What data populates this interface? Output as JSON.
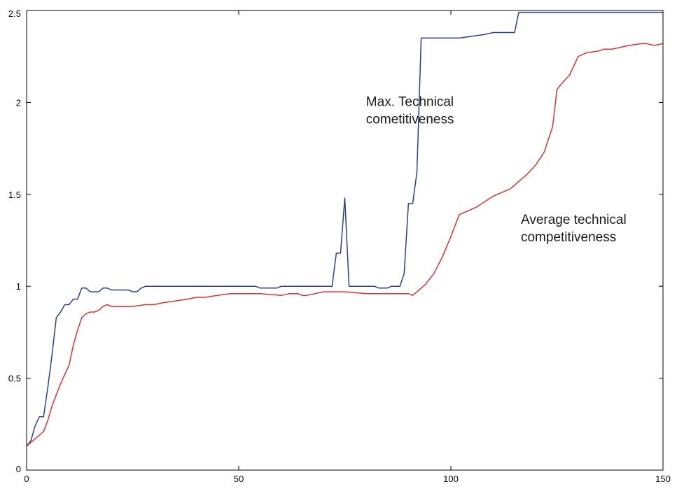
{
  "chart_data": {
    "type": "line",
    "title": "",
    "xlabel": "",
    "ylabel": "",
    "xlim": [
      0,
      150
    ],
    "ylim": [
      0,
      2.5
    ],
    "x_ticks": [
      0,
      50,
      100,
      150
    ],
    "y_ticks": [
      0,
      0.5,
      1,
      1.5,
      2,
      2.5
    ],
    "x_tick_labels": [
      "0",
      "50",
      "100",
      "150"
    ],
    "y_tick_labels": [
      "0",
      "0.5",
      "1",
      "1.5",
      "2",
      "2.5"
    ],
    "grid": false,
    "legend": "none",
    "series": [
      {
        "color": "#2b3f8f",
        "x": [
          0,
          1,
          2,
          3,
          4,
          5,
          6,
          7,
          8,
          9,
          10,
          11,
          12,
          13,
          14,
          15,
          16,
          17,
          18,
          19,
          20,
          21,
          22,
          23,
          24,
          25,
          26,
          27,
          28,
          30,
          35,
          40,
          45,
          50,
          54,
          55,
          56,
          57,
          58,
          59,
          60,
          61,
          62,
          65,
          68,
          70,
          71,
          72,
          73,
          74,
          75,
          76,
          77,
          78,
          80,
          82,
          83,
          84,
          85,
          86,
          87,
          88,
          89,
          90,
          91,
          92,
          93,
          94,
          95,
          100,
          102,
          105,
          108,
          110,
          111,
          115,
          116,
          120,
          125,
          130,
          135,
          140,
          145,
          150
        ],
        "y": [
          0.13,
          0.16,
          0.24,
          0.29,
          0.29,
          0.45,
          0.63,
          0.83,
          0.86,
          0.9,
          0.9,
          0.93,
          0.93,
          0.99,
          0.99,
          0.97,
          0.97,
          0.97,
          0.99,
          0.99,
          0.98,
          0.98,
          0.98,
          0.98,
          0.98,
          0.97,
          0.97,
          0.99,
          1.0,
          1.0,
          1.0,
          1.0,
          1.0,
          1.0,
          1.0,
          0.99,
          0.99,
          0.99,
          0.99,
          0.99,
          1.0,
          1.0,
          1.0,
          1.0,
          1.0,
          1.0,
          1.0,
          1.0,
          1.18,
          1.18,
          1.48,
          1.0,
          1.0,
          1.0,
          1.0,
          1.0,
          0.99,
          0.99,
          0.99,
          1.0,
          1.0,
          1.0,
          1.07,
          1.45,
          1.45,
          1.62,
          2.35,
          2.35,
          2.35,
          2.35,
          2.35,
          2.36,
          2.37,
          2.38,
          2.38,
          2.38,
          2.49,
          2.49,
          2.49,
          2.49,
          2.49,
          2.49,
          2.49,
          2.49
        ]
      },
      {
        "color": "#e03131",
        "x": [
          0,
          1,
          2,
          3,
          4,
          5,
          6,
          7,
          8,
          9,
          10,
          11,
          12,
          13,
          14,
          15,
          16,
          17,
          18,
          19,
          20,
          22,
          25,
          28,
          30,
          32,
          35,
          38,
          40,
          42,
          45,
          48,
          50,
          55,
          60,
          62,
          64,
          65,
          66,
          68,
          70,
          72,
          75,
          80,
          85,
          88,
          90,
          91,
          92,
          94,
          96,
          98,
          100,
          102,
          104,
          106,
          108,
          110,
          112,
          114,
          116,
          118,
          120,
          122,
          124,
          125,
          126,
          128,
          130,
          132,
          135,
          136,
          138,
          140,
          142,
          145,
          146,
          148,
          150
        ],
        "y": [
          0.13,
          0.15,
          0.17,
          0.19,
          0.21,
          0.27,
          0.35,
          0.41,
          0.47,
          0.52,
          0.57,
          0.68,
          0.76,
          0.83,
          0.85,
          0.86,
          0.86,
          0.87,
          0.89,
          0.9,
          0.89,
          0.89,
          0.89,
          0.9,
          0.9,
          0.91,
          0.92,
          0.93,
          0.94,
          0.94,
          0.95,
          0.96,
          0.96,
          0.96,
          0.95,
          0.96,
          0.96,
          0.95,
          0.95,
          0.96,
          0.97,
          0.97,
          0.97,
          0.96,
          0.96,
          0.96,
          0.96,
          0.95,
          0.97,
          1.01,
          1.07,
          1.16,
          1.27,
          1.39,
          1.41,
          1.43,
          1.46,
          1.49,
          1.51,
          1.53,
          1.57,
          1.61,
          1.66,
          1.73,
          1.87,
          2.07,
          2.1,
          2.15,
          2.25,
          2.27,
          2.28,
          2.29,
          2.29,
          2.3,
          2.31,
          2.32,
          2.32,
          2.31,
          2.32
        ]
      }
    ],
    "annotations": [
      {
        "lines": [
          "Max. Technical",
          "cometitiveness"
        ],
        "x": 80,
        "y": 1.98
      },
      {
        "lines": [
          "Average technical",
          "competitiveness"
        ],
        "x": 116.5,
        "y": 1.34
      }
    ]
  }
}
